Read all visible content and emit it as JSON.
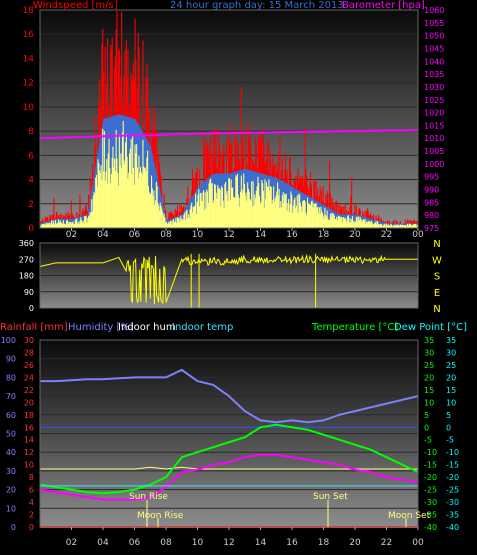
{
  "colors": {
    "wind_speed": "#ff0000",
    "wind_avg": "#3a6fd0",
    "wind_gust_core": "#ffff80",
    "barometer": "#ff00ff",
    "wind_dir": "#ffff00",
    "rainfall": "#ff3030",
    "humidity": "#8080ff",
    "indoor_hum": "#ffffff",
    "indoor_temp": "#40e0ff",
    "temperature": "#00ff00",
    "dew_point": "#00ffff",
    "outdoor_temp": "#00ff00",
    "dew": "#ff00ff",
    "sun_moon": "#ffff80",
    "bg": "#000000",
    "plot_grad_top": "#101010",
    "plot_grad_bottom": "#8a8a8a"
  },
  "top": {
    "title": "24 hour graph day: 15 March 2013",
    "left_label": "Windspeed [m/s]",
    "right_label": "Barometer [hpa]",
    "left_ticks": [
      "0",
      "2",
      "4",
      "6",
      "8",
      "10",
      "12",
      "14",
      "16",
      "18"
    ],
    "right_ticks": [
      "975",
      "980",
      "985",
      "990",
      "995",
      "1000",
      "1005",
      "1010",
      "1015",
      "1020",
      "1025",
      "1030",
      "1035",
      "1040",
      "1045",
      "1050",
      "1055",
      "1060"
    ]
  },
  "mid": {
    "left_ticks": [
      "0",
      "90",
      "180",
      "270",
      "360"
    ],
    "compass": [
      "N",
      "W",
      "S",
      "E",
      "N"
    ]
  },
  "bottom": {
    "label_rain": "Rainfall [mm]",
    "label_hum": "Humidity [%]",
    "label_in_hum": "Indoor hum",
    "label_in_temp": "Indoor temp",
    "label_temp": "Temperature [°C]",
    "label_dew": "Dew Point [°C]",
    "hum_ticks": [
      "0",
      "10",
      "20",
      "30",
      "40",
      "50",
      "60",
      "70",
      "80",
      "90",
      "100"
    ],
    "rain_ticks": [
      "0",
      "2",
      "4",
      "6",
      "8",
      "10",
      "12",
      "14",
      "16",
      "18",
      "20",
      "22",
      "24",
      "26",
      "28",
      "30"
    ],
    "temp_ticks": [
      "-40",
      "-35",
      "-30",
      "-25",
      "-20",
      "-15",
      "-10",
      "-5",
      "0",
      "5",
      "10",
      "15",
      "20",
      "25",
      "30",
      "35"
    ],
    "dew_ticks": [
      "-40",
      "-35",
      "-30",
      "-25",
      "-20",
      "-15",
      "-10",
      "-5",
      "0",
      "5",
      "10",
      "15",
      "20",
      "25",
      "30",
      "35"
    ],
    "sun_rise": "Sun Rise",
    "sun_set": "Sun Set",
    "moon_rise": "Moon Rise",
    "moon_set": "Moon Set"
  },
  "x_ticks": [
    "02",
    "04",
    "06",
    "08",
    "10",
    "12",
    "14",
    "16",
    "18",
    "20",
    "22",
    "00"
  ],
  "chart_data": [
    {
      "type": "line",
      "title": "24 hour graph day: 15 March 2013",
      "ylabel": "Windspeed [m/s]",
      "y2label": "Barometer [hpa]",
      "ylim": [
        0,
        18
      ],
      "y2lim": [
        975,
        1060
      ],
      "x": [
        0,
        1,
        2,
        3,
        4,
        5,
        6,
        7,
        8,
        9,
        10,
        11,
        12,
        13,
        14,
        15,
        16,
        17,
        18,
        19,
        20,
        21,
        22,
        23,
        24
      ],
      "series": [
        {
          "name": "Windspeed [m/s]",
          "values": [
            0.5,
            1.0,
            1.0,
            1.5,
            12.0,
            12.5,
            12.0,
            9.0,
            0.8,
            1.5,
            4.5,
            6.0,
            6.0,
            6.5,
            6.0,
            5.5,
            4.5,
            3.5,
            2.5,
            1.5,
            1.5,
            1.0,
            0.5,
            0.5,
            0.5
          ]
        },
        {
          "name": "Barometer [hpa]",
          "values": [
            1010.0,
            1010.2,
            1010.4,
            1010.5,
            1010.8,
            1011.0,
            1011.1,
            1011.2,
            1011.4,
            1011.6,
            1011.8,
            1011.9,
            1012.0,
            1012.1,
            1012.2,
            1012.3,
            1012.4,
            1012.5,
            1012.6,
            1012.7,
            1012.8,
            1012.9,
            1013.0,
            1013.0,
            1013.1
          ]
        }
      ]
    },
    {
      "type": "line",
      "ylim": [
        0,
        360
      ],
      "x": [
        0,
        1,
        2,
        3,
        4,
        5,
        6,
        7,
        8,
        9,
        10,
        11,
        12,
        13,
        14,
        15,
        16,
        17,
        18,
        19,
        20,
        21,
        22,
        23,
        24
      ],
      "series": [
        {
          "values": [
            230,
            250,
            250,
            250,
            250,
            280,
            120,
            60,
            30,
            270,
            250,
            260,
            255,
            270,
            265,
            270,
            265,
            270,
            265,
            265,
            265,
            265,
            270,
            270,
            270
          ]
        }
      ]
    },
    {
      "type": "line",
      "ylim": [
        0,
        100
      ],
      "y2lim": [
        -40,
        35
      ],
      "x": [
        0,
        1,
        2,
        3,
        4,
        5,
        6,
        7,
        8,
        9,
        10,
        11,
        12,
        13,
        14,
        15,
        16,
        17,
        18,
        19,
        20,
        21,
        22,
        23,
        24
      ],
      "series": [
        {
          "name": "Humidity [%]",
          "values": [
            78,
            78,
            78.5,
            79,
            79,
            79.5,
            80,
            80,
            80,
            84,
            78,
            76,
            70,
            62,
            57,
            56,
            57,
            56,
            57,
            60,
            62,
            64,
            66,
            68,
            70
          ]
        },
        {
          "name": "Indoor temp",
          "values": [
            22,
            22,
            22,
            22,
            22,
            22,
            22,
            22,
            22,
            22,
            22,
            22,
            22,
            22,
            22,
            22,
            22,
            22,
            22,
            22,
            22,
            22,
            22,
            22,
            22
          ]
        },
        {
          "name": "Temperature [°C]",
          "values": [
            -23,
            -24,
            -25,
            -26,
            -26.5,
            -26,
            -25,
            -23,
            -20,
            -12,
            -10,
            -8,
            -6,
            -4,
            0,
            1,
            0,
            -1,
            -3,
            -5,
            -7,
            -9,
            -12,
            -15,
            -18
          ]
        },
        {
          "name": "Dew Point [°C]",
          "values": [
            -25,
            -26,
            -27,
            -28,
            -29,
            -29,
            -29,
            -28,
            -24,
            -18,
            -17,
            -15,
            -14,
            -12,
            -11,
            -11,
            -12,
            -13,
            -14,
            -15,
            -17,
            -18,
            -20,
            -21,
            -22
          ]
        },
        {
          "name": "Indoor hum",
          "values": [
            31,
            31,
            31,
            31,
            31,
            31,
            31,
            32,
            31,
            32,
            31,
            31,
            31,
            31,
            31,
            31,
            31,
            31,
            31,
            31,
            31,
            31,
            31,
            31,
            31
          ]
        },
        {
          "name": "Rainfall [mm]",
          "values": [
            0,
            0,
            0,
            0,
            0,
            0,
            0,
            0,
            0,
            0,
            0,
            0,
            0,
            0,
            0,
            0,
            0,
            0,
            0,
            0,
            0,
            0,
            0,
            0,
            0
          ]
        }
      ],
      "annotations": [
        "Sun Rise",
        "Moon Rise",
        "Sun Set",
        "Moon Set"
      ]
    }
  ]
}
